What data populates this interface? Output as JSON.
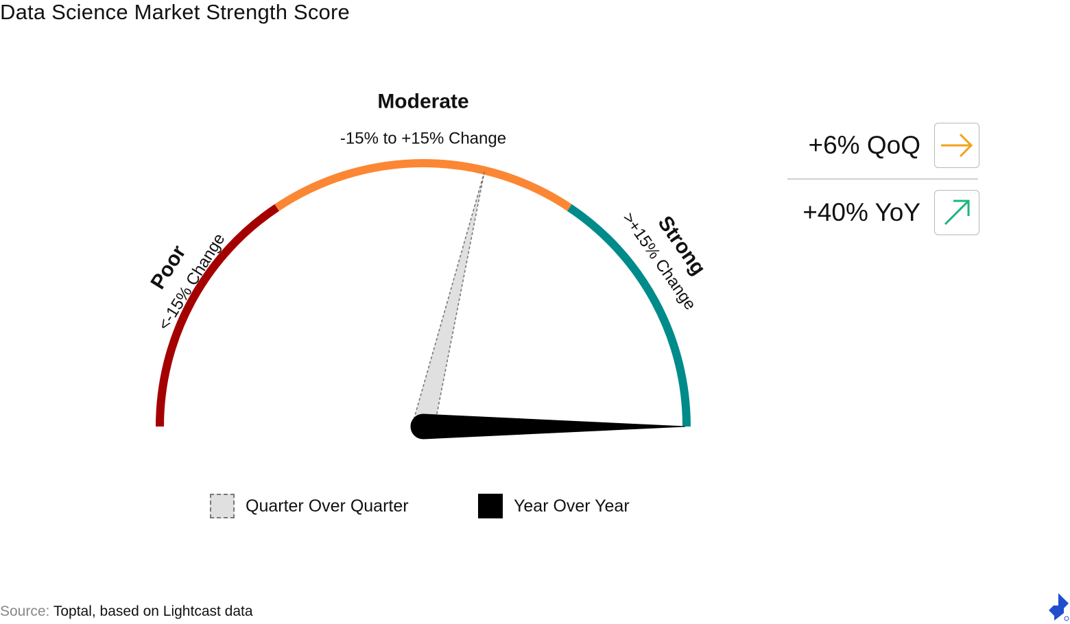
{
  "title": "Data Science Market Strength Score",
  "chart_data": {
    "type": "gauge",
    "title": "Data Science Market Strength Score",
    "scale": {
      "min": -40,
      "max": 40,
      "unit": "%"
    },
    "zones": [
      {
        "name": "Poor",
        "range_label": "<-15% Change",
        "from": -40,
        "to": -15,
        "color": "#a50000"
      },
      {
        "name": "Moderate",
        "range_label": "-15% to +15% Change",
        "from": -15,
        "to": 15,
        "color": "#fb8734"
      },
      {
        "name": "Strong",
        "range_label": ">+15% Change",
        "from": 15,
        "to": 40,
        "color": "#008b8b"
      }
    ],
    "series": [
      {
        "name": "Quarter Over Quarter",
        "value": 6,
        "style": "dashed-gray"
      },
      {
        "name": "Year Over Year",
        "value": 40,
        "style": "solid-black"
      }
    ]
  },
  "kpis": [
    {
      "value_label": "+6% QoQ",
      "icon": "right-arrow-icon",
      "color": "#f3a11c"
    },
    {
      "value_label": "+40% YoY",
      "icon": "up-right-arrow-icon",
      "color": "#1db47d"
    }
  ],
  "source": {
    "label": "Source:",
    "text": " Toptal, based on Lightcast data"
  },
  "logo_color": "#204ecf"
}
